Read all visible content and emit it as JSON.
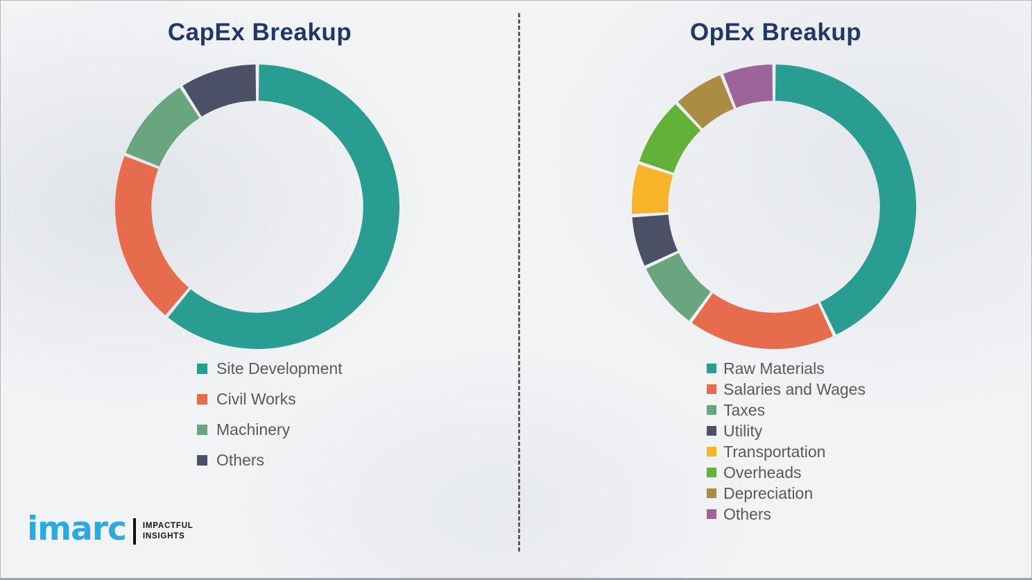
{
  "chart_data": [
    {
      "type": "pie",
      "subtype": "donut",
      "title": "CapEx Breakup",
      "categories": [
        "Site Development",
        "Civil Works",
        "Machinery",
        "Others"
      ],
      "values": [
        61,
        20,
        10,
        9
      ],
      "colors": [
        "#2a9d92",
        "#e66c4d",
        "#69a57f",
        "#4b5066"
      ],
      "start_angle_deg": 0,
      "direction": "clockwise",
      "inner_radius_ratio": 0.745,
      "legend_position": "below-left",
      "grid": false
    },
    {
      "type": "pie",
      "subtype": "donut",
      "title": "OpEx Breakup",
      "categories": [
        "Raw Materials",
        "Salaries and Wages",
        "Taxes",
        "Utility",
        "Transportation",
        "Overheads",
        "Depreciation",
        "Others"
      ],
      "values": [
        43,
        17,
        8,
        6,
        6,
        8,
        6,
        6
      ],
      "colors": [
        "#2a9d92",
        "#e66c4d",
        "#69a57f",
        "#4b5066",
        "#f7b429",
        "#62b23a",
        "#aa8c42",
        "#9d639b"
      ],
      "start_angle_deg": 0,
      "direction": "clockwise",
      "inner_radius_ratio": 0.745,
      "legend_position": "below-left",
      "grid": false
    }
  ],
  "branding": {
    "logo_text": "imarc",
    "tagline1": "IMPACTFUL",
    "tagline2": "INSIGHTS",
    "logo_color": "#2ba9e0"
  },
  "theme": {
    "title_color": "#1f3864",
    "legend_text_color": "#595959",
    "divider_color": "#5b5b5b",
    "background_color": "#f2f3f5"
  }
}
